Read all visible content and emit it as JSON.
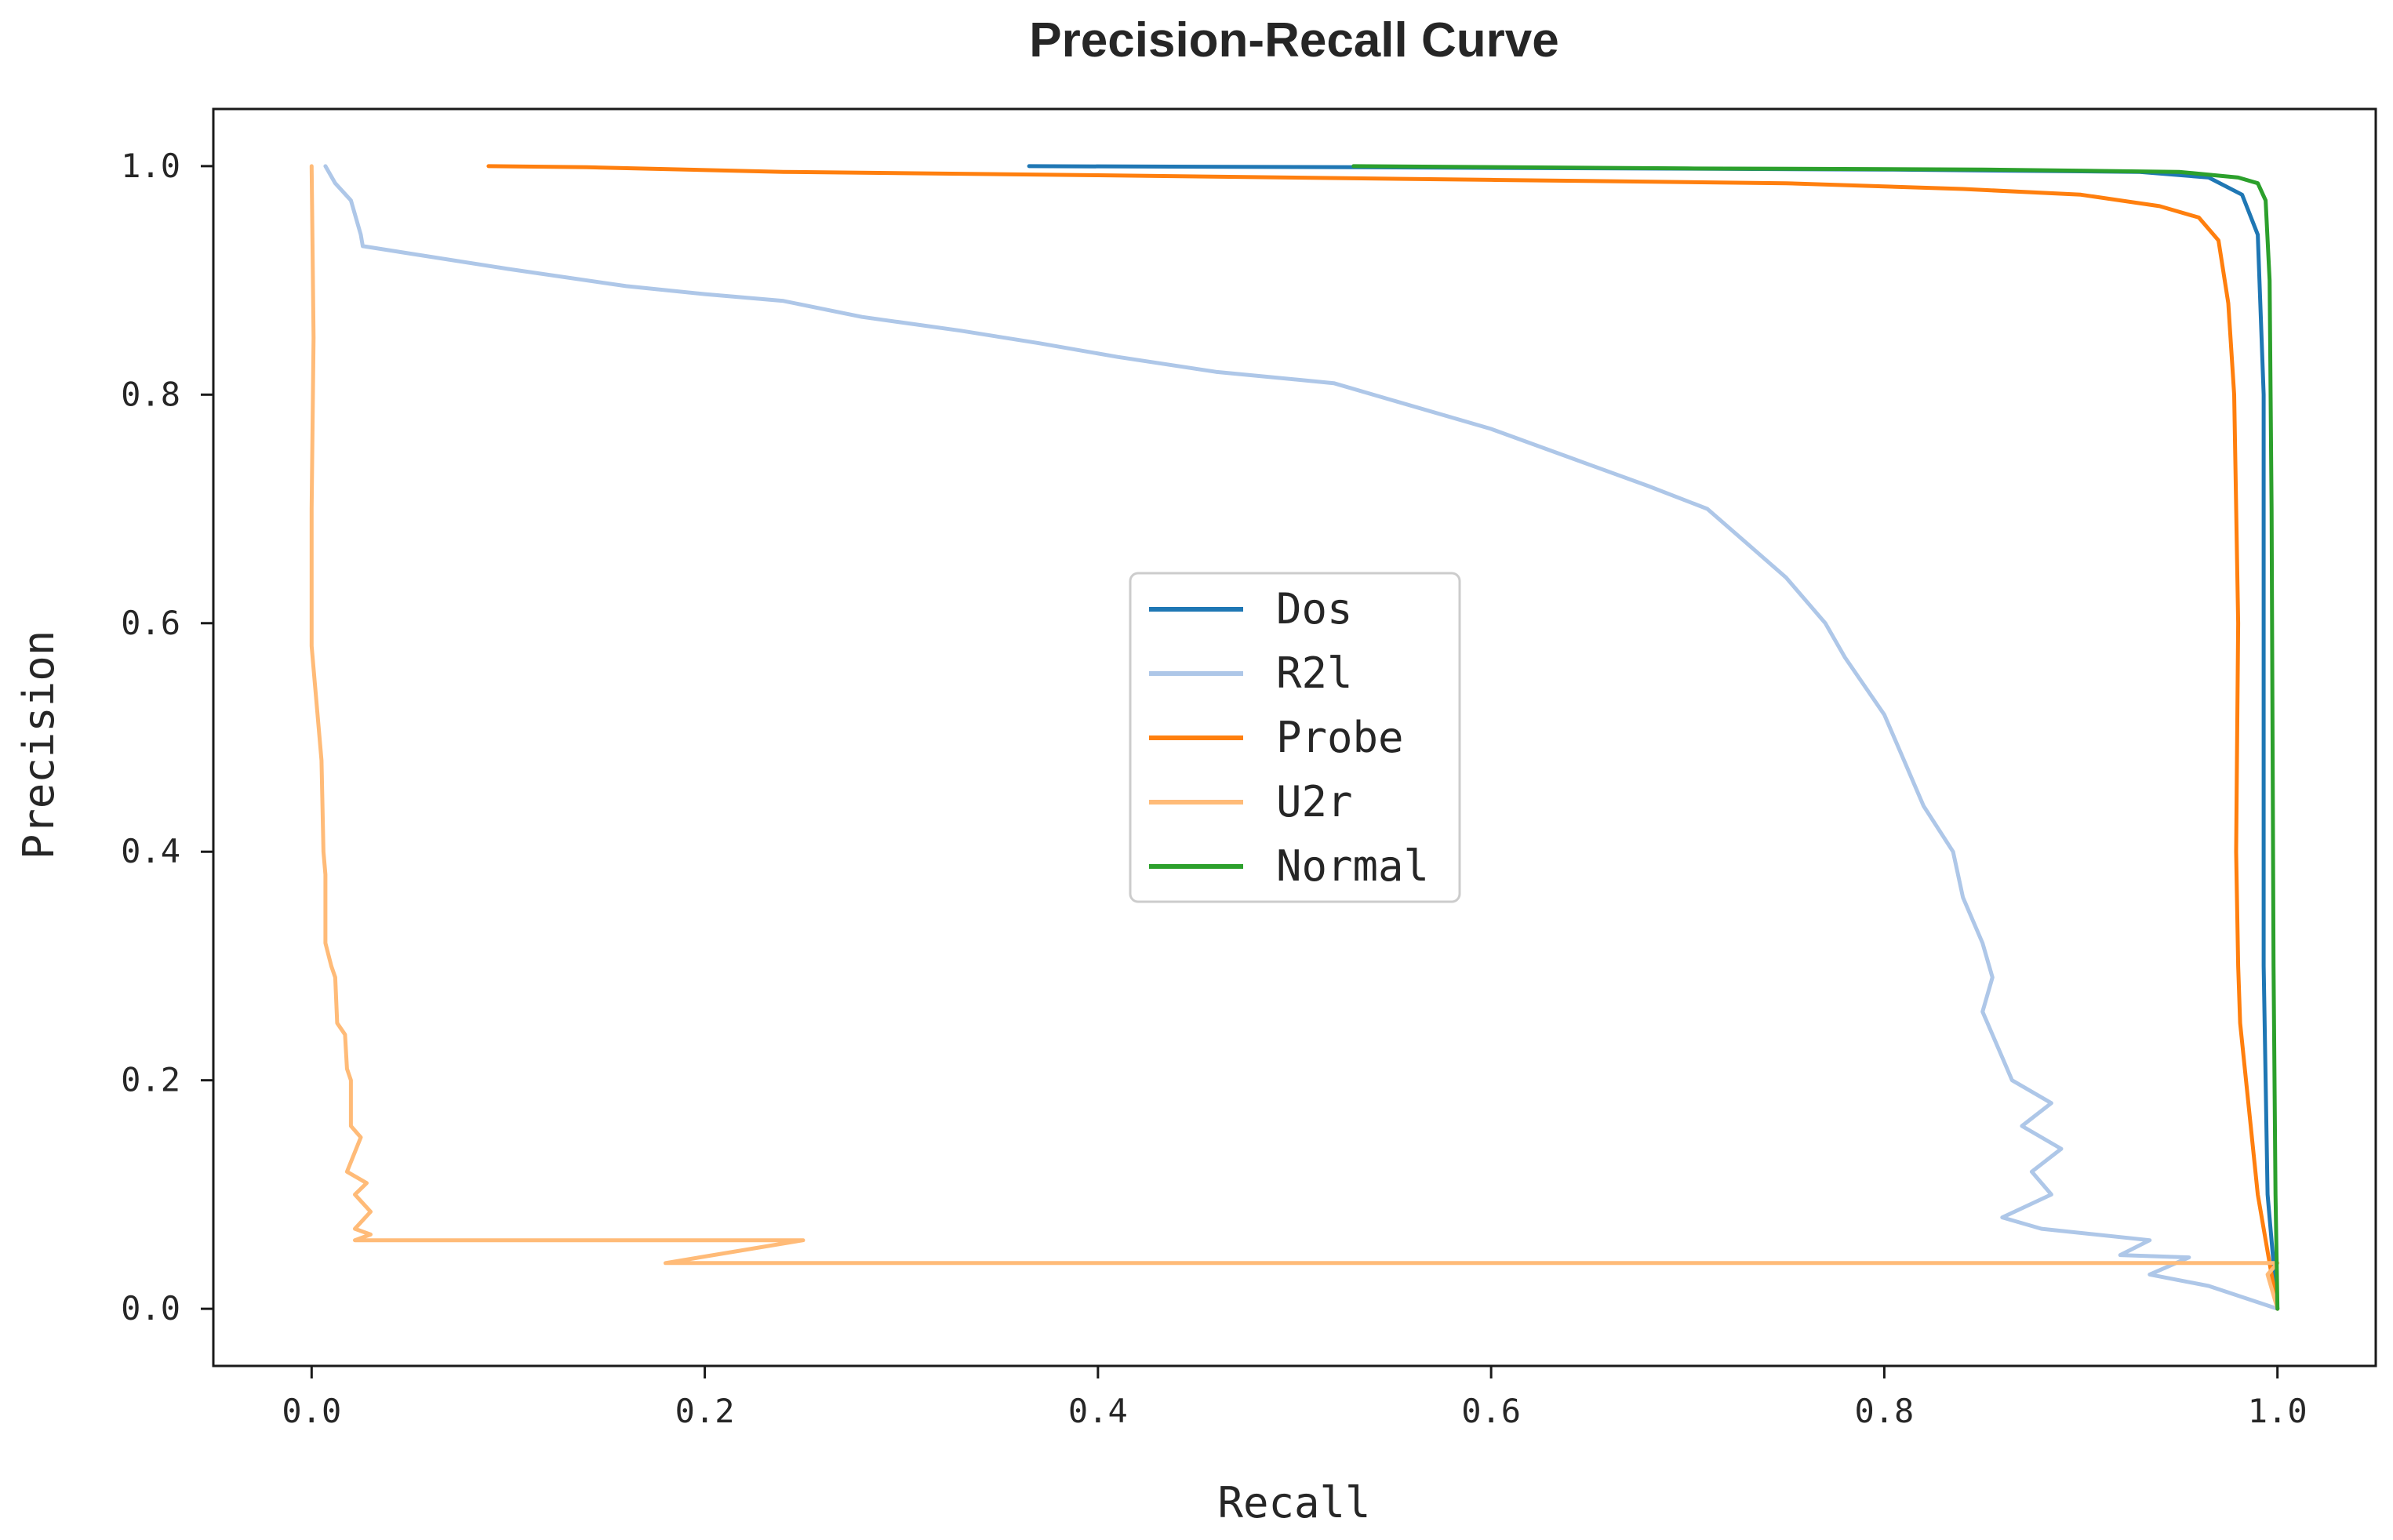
{
  "chart_data": {
    "type": "line",
    "title": "Precision-Recall Curve",
    "xlabel": "Recall",
    "ylabel": "Precision",
    "xlim": [
      -0.05,
      1.05
    ],
    "ylim": [
      -0.05,
      1.05
    ],
    "xticks": [
      0.0,
      0.2,
      0.4,
      0.6,
      0.8,
      1.0
    ],
    "xtick_labels": [
      "0.0",
      "0.2",
      "0.4",
      "0.6",
      "0.8",
      "1.0"
    ],
    "yticks": [
      0.0,
      0.2,
      0.4,
      0.6,
      0.8,
      1.0
    ],
    "ytick_labels": [
      "0.0",
      "0.2",
      "0.4",
      "0.6",
      "0.8",
      "1.0"
    ],
    "grid": false,
    "legend_position": "center",
    "series": [
      {
        "name": "Dos",
        "color": "#1f77b4",
        "points": [
          [
            0.365,
            1.0
          ],
          [
            0.53,
            0.999
          ],
          [
            0.8,
            0.997
          ],
          [
            0.93,
            0.995
          ],
          [
            0.965,
            0.99
          ],
          [
            0.982,
            0.975
          ],
          [
            0.99,
            0.94
          ],
          [
            0.993,
            0.8
          ],
          [
            0.993,
            0.3
          ],
          [
            0.995,
            0.1
          ],
          [
            1.0,
            0.0
          ]
        ]
      },
      {
        "name": "R2l",
        "color": "#aec7e8",
        "points": [
          [
            0.007,
            1.0
          ],
          [
            0.012,
            0.985
          ],
          [
            0.02,
            0.97
          ],
          [
            0.025,
            0.94
          ],
          [
            0.026,
            0.93
          ],
          [
            0.1,
            0.91
          ],
          [
            0.16,
            0.895
          ],
          [
            0.2,
            0.888
          ],
          [
            0.24,
            0.882
          ],
          [
            0.28,
            0.868
          ],
          [
            0.33,
            0.856
          ],
          [
            0.37,
            0.845
          ],
          [
            0.41,
            0.833
          ],
          [
            0.46,
            0.82
          ],
          [
            0.52,
            0.81
          ],
          [
            0.55,
            0.795
          ],
          [
            0.6,
            0.77
          ],
          [
            0.64,
            0.745
          ],
          [
            0.68,
            0.72
          ],
          [
            0.71,
            0.7
          ],
          [
            0.73,
            0.67
          ],
          [
            0.75,
            0.64
          ],
          [
            0.77,
            0.6
          ],
          [
            0.78,
            0.57
          ],
          [
            0.8,
            0.52
          ],
          [
            0.81,
            0.48
          ],
          [
            0.82,
            0.44
          ],
          [
            0.835,
            0.4
          ],
          [
            0.84,
            0.36
          ],
          [
            0.85,
            0.32
          ],
          [
            0.855,
            0.29
          ],
          [
            0.85,
            0.26
          ],
          [
            0.86,
            0.22
          ],
          [
            0.865,
            0.2
          ],
          [
            0.885,
            0.18
          ],
          [
            0.87,
            0.16
          ],
          [
            0.89,
            0.14
          ],
          [
            0.875,
            0.12
          ],
          [
            0.885,
            0.1
          ],
          [
            0.86,
            0.08
          ],
          [
            0.88,
            0.07
          ],
          [
            0.935,
            0.06
          ],
          [
            0.92,
            0.047
          ],
          [
            0.955,
            0.045
          ],
          [
            0.935,
            0.03
          ],
          [
            0.965,
            0.02
          ],
          [
            1.0,
            0.0
          ]
        ]
      },
      {
        "name": "Probe",
        "color": "#ff7f0e",
        "points": [
          [
            0.09,
            1.0
          ],
          [
            0.14,
            0.999
          ],
          [
            0.24,
            0.995
          ],
          [
            0.4,
            0.992
          ],
          [
            0.6,
            0.988
          ],
          [
            0.75,
            0.985
          ],
          [
            0.84,
            0.98
          ],
          [
            0.9,
            0.975
          ],
          [
            0.94,
            0.965
          ],
          [
            0.96,
            0.955
          ],
          [
            0.97,
            0.935
          ],
          [
            0.975,
            0.88
          ],
          [
            0.978,
            0.8
          ],
          [
            0.98,
            0.6
          ],
          [
            0.979,
            0.4
          ],
          [
            0.98,
            0.3
          ],
          [
            0.981,
            0.25
          ],
          [
            0.984,
            0.2
          ],
          [
            0.99,
            0.1
          ],
          [
            1.0,
            0.0
          ]
        ]
      },
      {
        "name": "U2r",
        "color": "#ffbb78",
        "points": [
          [
            0.0,
            1.0
          ],
          [
            0.001,
            0.85
          ],
          [
            0.0,
            0.7
          ],
          [
            0.0,
            0.58
          ],
          [
            0.005,
            0.48
          ],
          [
            0.006,
            0.4
          ],
          [
            0.007,
            0.38
          ],
          [
            0.007,
            0.32
          ],
          [
            0.01,
            0.3
          ],
          [
            0.012,
            0.29
          ],
          [
            0.013,
            0.25
          ],
          [
            0.017,
            0.24
          ],
          [
            0.018,
            0.21
          ],
          [
            0.02,
            0.2
          ],
          [
            0.02,
            0.16
          ],
          [
            0.025,
            0.15
          ],
          [
            0.018,
            0.12
          ],
          [
            0.028,
            0.11
          ],
          [
            0.022,
            0.1
          ],
          [
            0.03,
            0.085
          ],
          [
            0.022,
            0.07
          ],
          [
            0.03,
            0.065
          ],
          [
            0.022,
            0.06
          ],
          [
            0.25,
            0.06
          ],
          [
            0.18,
            0.04
          ],
          [
            1.0,
            0.04
          ],
          [
            0.995,
            0.03
          ],
          [
            1.0,
            0.0
          ]
        ]
      },
      {
        "name": "Normal",
        "color": "#2ca02c",
        "points": [
          [
            0.53,
            1.0
          ],
          [
            0.7,
            0.998
          ],
          [
            0.85,
            0.997
          ],
          [
            0.95,
            0.995
          ],
          [
            0.98,
            0.99
          ],
          [
            0.99,
            0.985
          ],
          [
            0.994,
            0.97
          ],
          [
            0.996,
            0.9
          ],
          [
            0.997,
            0.7
          ],
          [
            0.998,
            0.3
          ],
          [
            0.999,
            0.1
          ],
          [
            1.0,
            0.0
          ]
        ]
      }
    ]
  }
}
